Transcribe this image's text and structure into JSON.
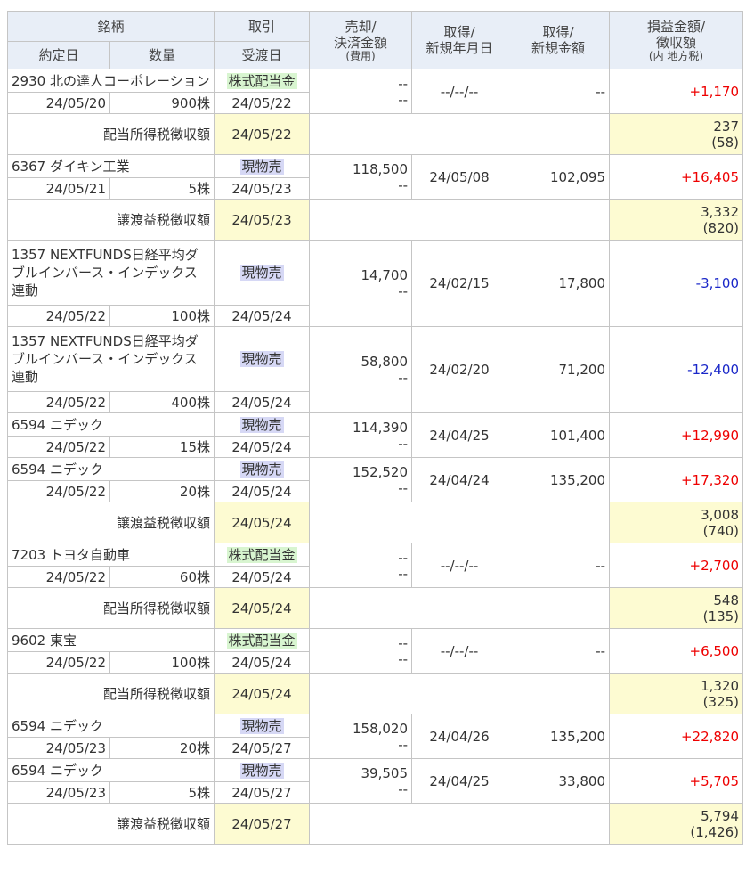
{
  "header": {
    "meigara": "銘柄",
    "torihiki": "取引",
    "baikyaku": "売却/",
    "kessai": "決済金額",
    "hiyou": "(費用)",
    "shutoku1": "取得/",
    "shinki_date": "新規年月日",
    "shutoku2": "取得/",
    "shinki_amount": "新規金額",
    "soneki": "損益金額/",
    "choshu": "徴収額",
    "uchi": "(内 地方税)",
    "yakujo": "約定日",
    "suryo": "数量",
    "ukewatashi": "受渡日"
  },
  "rows": [
    {
      "kind": "trade",
      "name": "2930 北の達人コーポレーション",
      "type": "株式配当金",
      "type_class": "div",
      "sell1": "--",
      "sell2": "--",
      "acq_date": "--/--/--",
      "acq_amount": "--",
      "pl": "+1,170",
      "pl_class": "pos",
      "date": "24/05/20",
      "qty": "900株",
      "settle": "24/05/22"
    },
    {
      "kind": "tax",
      "label": "配当所得税徴収額",
      "date": "24/05/22",
      "amount": "237",
      "local": "(58)"
    },
    {
      "kind": "trade",
      "name": "6367 ダイキン工業",
      "type": "現物売",
      "type_class": "sell",
      "sell1": "118,500",
      "sell2": "--",
      "acq_date": "24/05/08",
      "acq_amount": "102,095",
      "pl": "+16,405",
      "pl_class": "pos",
      "date": "24/05/21",
      "qty": "5株",
      "settle": "24/05/23"
    },
    {
      "kind": "tax",
      "label": "譲渡益税徴収額",
      "date": "24/05/23",
      "amount": "3,332",
      "local": "(820)"
    },
    {
      "kind": "trade",
      "name": "1357 NEXTFUNDS日経平均ダブルインバース・インデックス連動",
      "type": "現物売",
      "type_class": "sell",
      "sell1": "14,700",
      "sell2": "--",
      "acq_date": "24/02/15",
      "acq_amount": "17,800",
      "pl": "-3,100",
      "pl_class": "neg",
      "date": "24/05/22",
      "qty": "100株",
      "settle": "24/05/24"
    },
    {
      "kind": "trade",
      "name": "1357 NEXTFUNDS日経平均ダブルインバース・インデックス連動",
      "type": "現物売",
      "type_class": "sell",
      "sell1": "58,800",
      "sell2": "--",
      "acq_date": "24/02/20",
      "acq_amount": "71,200",
      "pl": "-12,400",
      "pl_class": "neg",
      "date": "24/05/22",
      "qty": "400株",
      "settle": "24/05/24"
    },
    {
      "kind": "trade",
      "name": "6594 ニデック",
      "type": "現物売",
      "type_class": "sell",
      "sell1": "114,390",
      "sell2": "--",
      "acq_date": "24/04/25",
      "acq_amount": "101,400",
      "pl": "+12,990",
      "pl_class": "pos",
      "date": "24/05/22",
      "qty": "15株",
      "settle": "24/05/24"
    },
    {
      "kind": "trade",
      "name": "6594 ニデック",
      "type": "現物売",
      "type_class": "sell",
      "sell1": "152,520",
      "sell2": "--",
      "acq_date": "24/04/24",
      "acq_amount": "135,200",
      "pl": "+17,320",
      "pl_class": "pos",
      "date": "24/05/22",
      "qty": "20株",
      "settle": "24/05/24"
    },
    {
      "kind": "tax",
      "label": "譲渡益税徴収額",
      "date": "24/05/24",
      "amount": "3,008",
      "local": "(740)"
    },
    {
      "kind": "trade",
      "name": "7203 トヨタ自動車",
      "type": "株式配当金",
      "type_class": "div",
      "sell1": "--",
      "sell2": "--",
      "acq_date": "--/--/--",
      "acq_amount": "--",
      "pl": "+2,700",
      "pl_class": "pos",
      "date": "24/05/22",
      "qty": "60株",
      "settle": "24/05/24"
    },
    {
      "kind": "tax",
      "label": "配当所得税徴収額",
      "date": "24/05/24",
      "amount": "548",
      "local": "(135)"
    },
    {
      "kind": "trade",
      "name": "9602 東宝",
      "type": "株式配当金",
      "type_class": "div",
      "sell1": "--",
      "sell2": "--",
      "acq_date": "--/--/--",
      "acq_amount": "--",
      "pl": "+6,500",
      "pl_class": "pos",
      "date": "24/05/22",
      "qty": "100株",
      "settle": "24/05/24"
    },
    {
      "kind": "tax",
      "label": "配当所得税徴収額",
      "date": "24/05/24",
      "amount": "1,320",
      "local": "(325)"
    },
    {
      "kind": "trade",
      "name": "6594 ニデック",
      "type": "現物売",
      "type_class": "sell",
      "sell1": "158,020",
      "sell2": "--",
      "acq_date": "24/04/26",
      "acq_amount": "135,200",
      "pl": "+22,820",
      "pl_class": "pos",
      "date": "24/05/23",
      "qty": "20株",
      "settle": "24/05/27"
    },
    {
      "kind": "trade",
      "name": "6594 ニデック",
      "type": "現物売",
      "type_class": "sell",
      "sell1": "39,505",
      "sell2": "--",
      "acq_date": "24/04/25",
      "acq_amount": "33,800",
      "pl": "+5,705",
      "pl_class": "pos",
      "date": "24/05/23",
      "qty": "5株",
      "settle": "24/05/27"
    },
    {
      "kind": "tax",
      "label": "譲渡益税徴収額",
      "date": "24/05/27",
      "amount": "5,794",
      "local": "(1,426)"
    }
  ]
}
